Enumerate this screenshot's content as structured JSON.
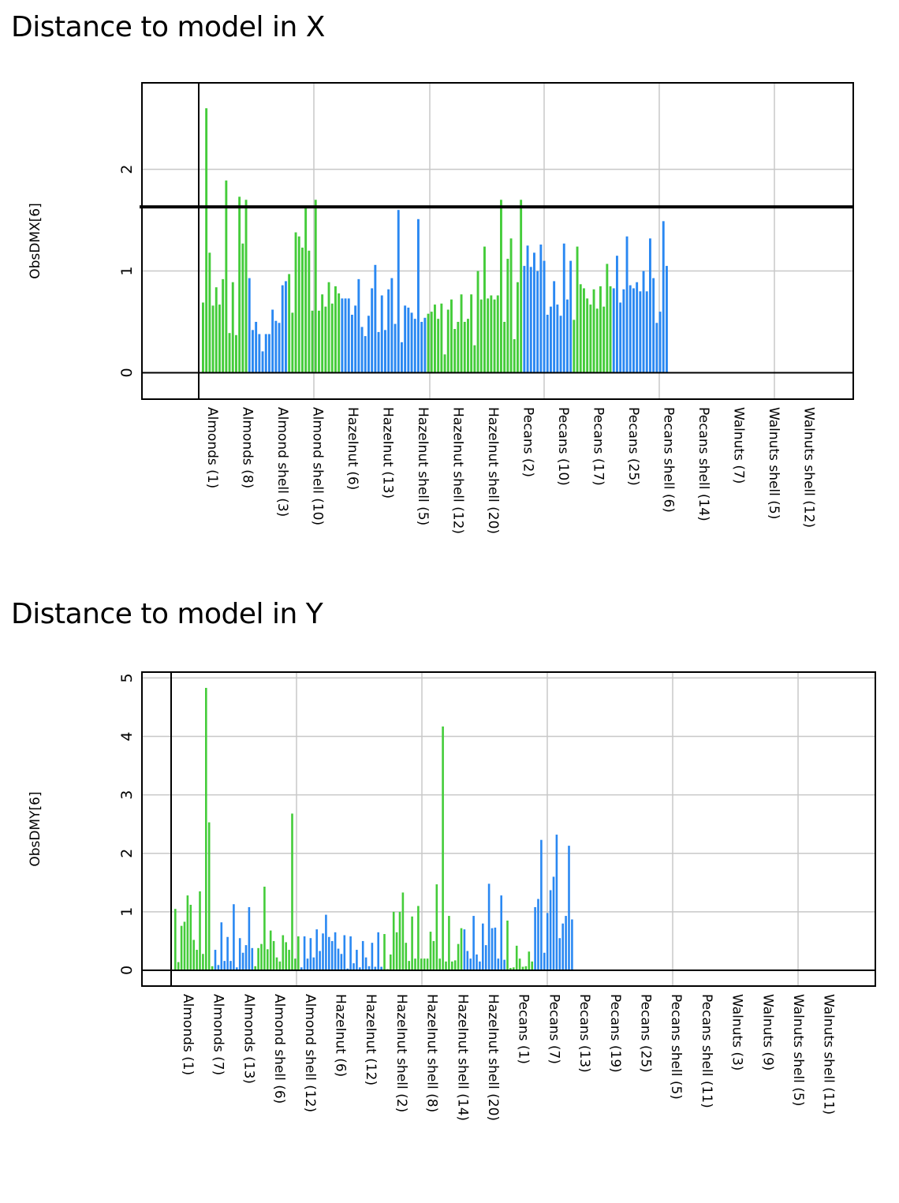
{
  "titles": {
    "x_chart": "Distance to model in X",
    "y_chart": "Distance to model in Y"
  },
  "colors": {
    "green": "#44cc3a",
    "blue": "#2a88f2",
    "grid": "#c8c8c8",
    "axis": "#000000"
  },
  "chart_data": [
    {
      "type": "bar",
      "title": "Distance to model in X",
      "ylabel": "ObsDMX[6]",
      "ylim": [
        -0.26,
        2.85
      ],
      "yticks": [
        0,
        1,
        2
      ],
      "critical_line": 1.63,
      "tick_labels": [
        "Almonds (1)",
        "Almonds (8)",
        "Almond shell (3)",
        "Almond shell (10)",
        "HazeInut (6)",
        "HazeInut (13)",
        "HazeInut shell (5)",
        "HazeInut shell (12)",
        "HazeInut shell (20)",
        "Pecans (2)",
        "Pecans (10)",
        "Pecans (17)",
        "Pecans (25)",
        "Pecans shell (6)",
        "Pecans shell (14)",
        "Walnuts (7)",
        "Walnuts shell (5)",
        "Walnuts shell (12)"
      ],
      "series": [
        {
          "name": "Almonds",
          "color": "green",
          "values": [
            0.69,
            2.6,
            1.18,
            0.66,
            0.84,
            0.67,
            0.92,
            1.89,
            0.39,
            0.89,
            0.37,
            1.73,
            1.27,
            1.7
          ]
        },
        {
          "name": "Almond shell",
          "color": "blue",
          "values": [
            0.93,
            0.42,
            0.5,
            0.38,
            0.21,
            0.38,
            0.38,
            0.62,
            0.51,
            0.49,
            0.86,
            0.9
          ]
        },
        {
          "name": "HazeInut",
          "color": "green",
          "values": [
            0.97,
            0.59,
            1.38,
            1.34,
            1.23,
            1.62,
            1.2,
            0.61,
            1.7,
            0.61,
            0.77,
            0.65,
            0.89,
            0.68,
            0.85,
            0.78
          ]
        },
        {
          "name": "HazeInut shell",
          "color": "blue",
          "values": [
            0.73,
            0.73,
            0.73,
            0.57,
            0.66,
            0.92,
            0.45,
            0.36,
            0.56,
            0.83,
            1.06,
            0.4,
            0.76,
            0.42,
            0.82,
            0.93,
            0.48,
            1.6,
            0.3,
            0.66,
            0.64,
            0.59,
            0.53,
            1.51,
            0.5,
            0.54
          ]
        },
        {
          "name": "Pecans",
          "color": "green",
          "values": [
            0.58,
            0.6,
            0.67,
            0.53,
            0.68,
            0.18,
            0.62,
            0.72,
            0.43,
            0.5,
            0.77,
            0.5,
            0.53,
            0.77,
            0.27,
            1.0,
            0.72,
            1.24,
            0.73,
            0.76,
            0.72,
            0.76,
            1.7,
            0.5,
            1.12,
            1.32,
            0.33,
            0.89,
            1.7
          ]
        },
        {
          "name": "Pecans shell",
          "color": "blue",
          "values": [
            1.05,
            1.25,
            1.04,
            1.18,
            1.0,
            1.26,
            1.1,
            0.57,
            0.65,
            0.9,
            0.67,
            0.56,
            1.27,
            0.72,
            1.1
          ]
        },
        {
          "name": "Walnuts",
          "color": "green",
          "values": [
            0.52,
            1.24,
            0.87,
            0.83,
            0.73,
            0.67,
            0.82,
            0.63,
            0.85,
            0.65,
            1.07,
            0.85
          ]
        },
        {
          "name": "Walnuts shell",
          "color": "blue",
          "values": [
            0.83,
            1.15,
            0.69,
            0.82,
            1.34,
            0.86,
            0.83,
            0.89,
            0.8,
            1.0,
            0.8,
            1.32,
            0.93,
            0.49,
            0.6,
            1.49,
            1.05
          ]
        }
      ]
    },
    {
      "type": "bar",
      "title": "Distance to model in Y",
      "ylabel": "ObsDMY[6]",
      "ylim": [
        -0.27,
        5.1
      ],
      "yticks": [
        0,
        1,
        2,
        3,
        4,
        5
      ],
      "tick_labels": [
        "Almonds (1)",
        "Almonds (7)",
        "Almonds (13)",
        "Almond shell (6)",
        "Almond shell (12)",
        "HazeInut (6)",
        "HazeInut (12)",
        "HazeInut shell (2)",
        "HazeInut shell (8)",
        "HazeInut shell (14)",
        "HazeInut shell (20)",
        "Pecans (1)",
        "Pecans (7)",
        "Pecans (13)",
        "Pecans (19)",
        "Pecans (25)",
        "Pecans shell (5)",
        "Pecans shell (11)",
        "Walnuts (3)",
        "Walnuts (9)",
        "Walnuts shell (5)",
        "Walnuts shell (11)"
      ],
      "series": [
        {
          "name": "Almonds",
          "color": "green",
          "values": [
            1.05,
            0.14,
            0.76,
            0.83,
            1.28,
            1.12,
            0.52,
            0.35,
            1.35,
            0.28,
            4.83,
            2.53,
            0.07
          ]
        },
        {
          "name": "Almond shell",
          "color": "blue",
          "values": [
            0.35,
            0.09,
            0.82,
            0.16,
            0.57,
            0.16,
            1.13,
            0.05,
            0.55,
            0.3,
            0.43,
            1.08,
            0.38
          ]
        },
        {
          "name": "HazeInut",
          "color": "green",
          "values": [
            0.07,
            0.38,
            0.45,
            1.43,
            0.36,
            0.68,
            0.5,
            0.22,
            0.15,
            0.6,
            0.48,
            0.35,
            2.68,
            0.2,
            0.58
          ]
        },
        {
          "name": "HazeInut shell",
          "color": "blue",
          "values": [
            0.05,
            0.58,
            0.2,
            0.55,
            0.22,
            0.7,
            0.33,
            0.63,
            0.95,
            0.57,
            0.5,
            0.65,
            0.37,
            0.28,
            0.6,
            0.03,
            0.58,
            0.12,
            0.35,
            0.05,
            0.5,
            0.22,
            0.07,
            0.47,
            0.06,
            0.65,
            0.06
          ]
        },
        {
          "name": "Pecans",
          "color": "green",
          "values": [
            0.62,
            0.02,
            0.27,
            1.0,
            0.65,
            1.0,
            1.33,
            0.47,
            0.16,
            0.92,
            0.2,
            1.1,
            0.2,
            0.2,
            0.2,
            0.66,
            0.5,
            1.47,
            0.2,
            4.17,
            0.15,
            0.93,
            0.15,
            0.17,
            0.45,
            0.72
          ]
        },
        {
          "name": "Pecans shell",
          "color": "blue",
          "values": [
            0.7,
            0.33,
            0.2,
            0.93,
            0.27,
            0.15,
            0.8,
            0.43,
            1.48,
            0.72,
            0.73,
            0.2,
            1.28,
            0.18
          ]
        },
        {
          "name": "Walnuts",
          "color": "green",
          "values": [
            0.85,
            0.04,
            0.05,
            0.42,
            0.2,
            0.06,
            0.07,
            0.32,
            0.15
          ]
        },
        {
          "name": "Walnuts shell",
          "color": "blue",
          "values": [
            1.08,
            1.22,
            2.23,
            0.3,
            0.98,
            1.37,
            1.6,
            2.32,
            0.55,
            0.8,
            0.93,
            2.13,
            0.87
          ]
        }
      ]
    }
  ]
}
